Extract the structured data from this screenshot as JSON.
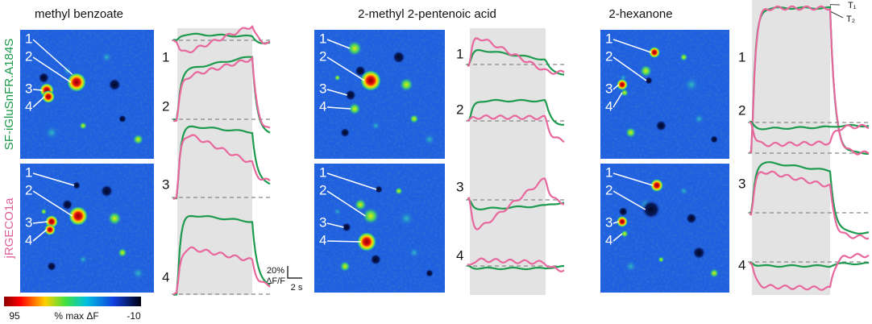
{
  "panels": [
    {
      "title": "methyl benzoate",
      "cell_labels": [
        "1",
        "2",
        "3",
        "4"
      ]
    },
    {
      "title": "2-methyl 2-pentenoic acid",
      "cell_labels": [
        "1",
        "2",
        "3",
        "4"
      ]
    },
    {
      "title": "2-hexanone",
      "cell_labels": [
        "1",
        "2",
        "3",
        "4"
      ]
    }
  ],
  "sensor_labels": {
    "green": "SF-iGluSnFR.A184S",
    "pink": "jRGECO1a"
  },
  "colorbar": {
    "max": "95",
    "label": "% max ΔF",
    "min": "-10"
  },
  "scale_bar": {
    "y": "20%",
    "y_unit": "ΔF/F",
    "x": "2 s"
  },
  "insets": [
    "T₁",
    "T₂"
  ]
}
